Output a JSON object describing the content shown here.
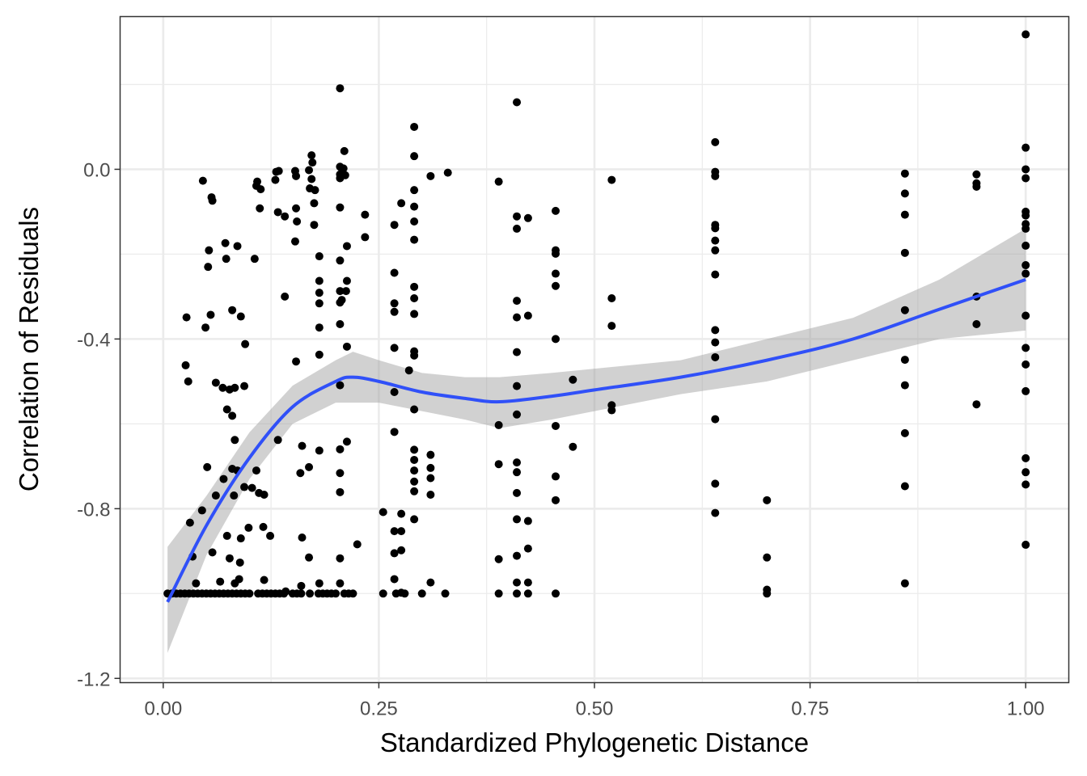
{
  "chart_data": {
    "type": "scatter",
    "title": "",
    "xlabel": "Standardized Phylogenetic Distance",
    "ylabel": "Correlation of Residuals",
    "xlim": [
      -0.05,
      1.05
    ],
    "ylim": [
      -1.21,
      0.36
    ],
    "x_ticks": [
      0,
      0.25,
      0.5,
      0.75,
      1.0
    ],
    "x_tick_labels": [
      "0.00",
      "0.25",
      "0.50",
      "0.75",
      "1.00"
    ],
    "y_ticks": [
      0.0,
      -0.4,
      -0.8,
      -1.2
    ],
    "y_tick_labels": [
      "0.0",
      "-0.4",
      "-0.8",
      "-1.2"
    ],
    "grid": true,
    "colors": {
      "points": "#000000",
      "smooth": "#3050f8",
      "ribbon": "#999999",
      "grid": "#ebebeb",
      "border": "#333333"
    },
    "smooth": {
      "name": "loess fit",
      "x": [
        0.005,
        0.05,
        0.1,
        0.15,
        0.2,
        0.22,
        0.25,
        0.3,
        0.35,
        0.39,
        0.45,
        0.5,
        0.6,
        0.7,
        0.8,
        0.9,
        1.0
      ],
      "y": [
        -1.02,
        -0.84,
        -0.68,
        -0.56,
        -0.5,
        -0.49,
        -0.5,
        -0.525,
        -0.54,
        -0.548,
        -0.535,
        -0.52,
        -0.49,
        -0.45,
        -0.4,
        -0.33,
        -0.26
      ],
      "lower": [
        -1.14,
        -0.91,
        -0.73,
        -0.6,
        -0.55,
        -0.55,
        -0.55,
        -0.57,
        -0.59,
        -0.61,
        -0.59,
        -0.57,
        -0.53,
        -0.5,
        -0.45,
        -0.4,
        -0.38
      ],
      "upper": [
        -0.89,
        -0.77,
        -0.62,
        -0.51,
        -0.45,
        -0.43,
        -0.45,
        -0.48,
        -0.49,
        -0.49,
        -0.48,
        -0.47,
        -0.45,
        -0.4,
        -0.35,
        -0.26,
        -0.14
      ]
    },
    "points": [
      [
        0.046,
        -0.027
      ],
      [
        0.056,
        -0.066
      ],
      [
        0.057,
        -0.074
      ],
      [
        0.053,
        -0.191
      ],
      [
        0.052,
        -0.23
      ],
      [
        0.072,
        -0.174
      ],
      [
        0.073,
        -0.211
      ],
      [
        0.086,
        -0.181
      ],
      [
        0.106,
        -0.211
      ],
      [
        0.027,
        -0.349
      ],
      [
        0.049,
        -0.373
      ],
      [
        0.055,
        -0.343
      ],
      [
        0.08,
        -0.332
      ],
      [
        0.09,
        -0.347
      ],
      [
        0.095,
        -0.412
      ],
      [
        0.026,
        -0.462
      ],
      [
        0.029,
        -0.5
      ],
      [
        0.061,
        -0.503
      ],
      [
        0.069,
        -0.515
      ],
      [
        0.077,
        -0.519
      ],
      [
        0.083,
        -0.515
      ],
      [
        0.094,
        -0.511
      ],
      [
        0.074,
        -0.566
      ],
      [
        0.08,
        -0.581
      ],
      [
        0.083,
        -0.638
      ],
      [
        0.031,
        -0.833
      ],
      [
        0.045,
        -0.804
      ],
      [
        0.051,
        -0.702
      ],
      [
        0.061,
        -0.769
      ],
      [
        0.07,
        -0.73
      ],
      [
        0.08,
        -0.706
      ],
      [
        0.086,
        -0.71
      ],
      [
        0.082,
        -0.769
      ],
      [
        0.094,
        -0.749
      ],
      [
        0.103,
        -0.751
      ],
      [
        0.108,
        -0.71
      ],
      [
        0.111,
        -0.763
      ],
      [
        0.117,
        -0.767
      ],
      [
        0.034,
        -0.913
      ],
      [
        0.057,
        -0.903
      ],
      [
        0.074,
        -0.864
      ],
      [
        0.077,
        -0.917
      ],
      [
        0.09,
        -0.87
      ],
      [
        0.099,
        -0.845
      ],
      [
        0.116,
        -0.843
      ],
      [
        0.089,
        -0.927
      ],
      [
        0.088,
        -0.966
      ],
      [
        0.038,
        -0.976
      ],
      [
        0.066,
        -0.972
      ],
      [
        0.083,
        -0.976
      ],
      [
        0.117,
        -0.968
      ],
      [
        0.005,
        -1
      ],
      [
        0.01,
        -1
      ],
      [
        0.015,
        -1
      ],
      [
        0.02,
        -1
      ],
      [
        0.025,
        -1
      ],
      [
        0.03,
        -1
      ],
      [
        0.035,
        -1
      ],
      [
        0.04,
        -1
      ],
      [
        0.045,
        -1
      ],
      [
        0.05,
        -1
      ],
      [
        0.055,
        -1
      ],
      [
        0.06,
        -1
      ],
      [
        0.065,
        -1
      ],
      [
        0.07,
        -1
      ],
      [
        0.075,
        -1
      ],
      [
        0.08,
        -1
      ],
      [
        0.085,
        -1
      ],
      [
        0.09,
        -1
      ],
      [
        0.095,
        -1
      ],
      [
        0.1,
        -1
      ],
      [
        0.11,
        -1
      ],
      [
        0.115,
        -1
      ],
      [
        0.12,
        -1
      ],
      [
        0.125,
        -1
      ],
      [
        0.13,
        -1
      ],
      [
        0.135,
        -1
      ],
      [
        0.14,
        -1
      ],
      [
        0.15,
        -1
      ],
      [
        0.155,
        -1
      ],
      [
        0.16,
        -1
      ],
      [
        0.17,
        -1
      ],
      [
        0.18,
        -1
      ],
      [
        0.185,
        -1
      ],
      [
        0.19,
        -1
      ],
      [
        0.195,
        -1
      ],
      [
        0.2,
        -1
      ],
      [
        0.21,
        -1
      ],
      [
        0.215,
        -1
      ],
      [
        0.22,
        -1
      ],
      [
        0.255,
        -1
      ],
      [
        0.27,
        -1
      ],
      [
        0.28,
        -1
      ],
      [
        0.3,
        -1
      ],
      [
        0.327,
        -1
      ],
      [
        0.389,
        -1
      ],
      [
        0.41,
        -1
      ],
      [
        0.423,
        -1
      ],
      [
        0.455,
        -1
      ],
      [
        0.109,
        -0.029
      ],
      [
        0.108,
        -0.039
      ],
      [
        0.113,
        -0.047
      ],
      [
        0.131,
        -0.006
      ],
      [
        0.134,
        -0.004
      ],
      [
        0.13,
        -0.025
      ],
      [
        0.153,
        -0.004
      ],
      [
        0.154,
        -0.016
      ],
      [
        0.172,
        0.033
      ],
      [
        0.173,
        0.016
      ],
      [
        0.169,
        -0.002
      ],
      [
        0.172,
        -0.023
      ],
      [
        0.176,
        -0.049
      ],
      [
        0.17,
        -0.045
      ],
      [
        0.154,
        -0.092
      ],
      [
        0.141,
        -0.111
      ],
      [
        0.112,
        -0.092
      ],
      [
        0.133,
        -0.101
      ],
      [
        0.155,
        -0.123
      ],
      [
        0.175,
        -0.08
      ],
      [
        0.175,
        -0.131
      ],
      [
        0.153,
        -0.17
      ],
      [
        0.141,
        -0.3
      ],
      [
        0.181,
        -0.205
      ],
      [
        0.181,
        -0.263
      ],
      [
        0.181,
        -0.291
      ],
      [
        0.181,
        -0.316
      ],
      [
        0.181,
        -0.373
      ],
      [
        0.181,
        -0.437
      ],
      [
        0.154,
        -0.453
      ],
      [
        0.161,
        -0.652
      ],
      [
        0.159,
        -0.716
      ],
      [
        0.169,
        -0.702
      ],
      [
        0.181,
        -0.663
      ],
      [
        0.133,
        -0.638
      ],
      [
        0.124,
        -0.864
      ],
      [
        0.161,
        -0.868
      ],
      [
        0.169,
        -0.915
      ],
      [
        0.142,
        -0.995
      ],
      [
        0.16,
        -0.982
      ],
      [
        0.181,
        -0.976
      ],
      [
        0.21,
        0.043
      ],
      [
        0.209,
        0.002
      ],
      [
        0.211,
        -0.014
      ],
      [
        0.213,
        -0.181
      ],
      [
        0.213,
        -0.263
      ],
      [
        0.212,
        -0.287
      ],
      [
        0.207,
        -0.308
      ],
      [
        0.213,
        -0.418
      ],
      [
        0.213,
        -0.642
      ],
      [
        0.225,
        -0.884
      ],
      [
        0.234,
        -0.107
      ],
      [
        0.234,
        -0.16
      ],
      [
        0.205,
        0.191
      ],
      [
        0.205,
        0.006
      ],
      [
        0.205,
        -0.012
      ],
      [
        0.205,
        -0.021
      ],
      [
        0.205,
        -0.09
      ],
      [
        0.205,
        -0.215
      ],
      [
        0.205,
        -0.287
      ],
      [
        0.205,
        -0.314
      ],
      [
        0.205,
        -0.365
      ],
      [
        0.205,
        -0.509
      ],
      [
        0.205,
        -0.66
      ],
      [
        0.205,
        -0.716
      ],
      [
        0.205,
        -0.761
      ],
      [
        0.205,
        -0.917
      ],
      [
        0.205,
        -0.976
      ],
      [
        0.268,
        -0.131
      ],
      [
        0.268,
        -0.244
      ],
      [
        0.268,
        -0.316
      ],
      [
        0.268,
        -0.336
      ],
      [
        0.268,
        -0.421
      ],
      [
        0.268,
        -0.525
      ],
      [
        0.268,
        -0.619
      ],
      [
        0.268,
        -0.853
      ],
      [
        0.268,
        -0.905
      ],
      [
        0.268,
        -0.966
      ],
      [
        0.276,
        -0.08
      ],
      [
        0.276,
        -0.812
      ],
      [
        0.276,
        -0.853
      ],
      [
        0.276,
        -0.898
      ],
      [
        0.276,
        -0.998
      ],
      [
        0.255,
        -0.808
      ],
      [
        0.285,
        -0.474
      ],
      [
        0.291,
        0.1
      ],
      [
        0.291,
        0.031
      ],
      [
        0.291,
        -0.049
      ],
      [
        0.291,
        -0.088
      ],
      [
        0.291,
        -0.123
      ],
      [
        0.291,
        -0.166
      ],
      [
        0.291,
        -0.277
      ],
      [
        0.291,
        -0.304
      ],
      [
        0.291,
        -0.341
      ],
      [
        0.291,
        -0.429
      ],
      [
        0.291,
        -0.439
      ],
      [
        0.291,
        -0.566
      ],
      [
        0.291,
        -0.661
      ],
      [
        0.291,
        -0.685
      ],
      [
        0.291,
        -0.71
      ],
      [
        0.291,
        -0.736
      ],
      [
        0.291,
        -0.759
      ],
      [
        0.291,
        -0.825
      ],
      [
        0.31,
        -0.016
      ],
      [
        0.33,
        -0.008
      ],
      [
        0.31,
        -0.673
      ],
      [
        0.31,
        -0.704
      ],
      [
        0.31,
        -0.728
      ],
      [
        0.31,
        -0.767
      ],
      [
        0.31,
        -0.974
      ],
      [
        0.41,
        0.158
      ],
      [
        0.41,
        -0.111
      ],
      [
        0.41,
        -0.14
      ],
      [
        0.41,
        -0.31
      ],
      [
        0.41,
        -0.349
      ],
      [
        0.41,
        -0.431
      ],
      [
        0.41,
        -0.511
      ],
      [
        0.41,
        -0.578
      ],
      [
        0.41,
        -0.691
      ],
      [
        0.41,
        -0.714
      ],
      [
        0.41,
        -0.763
      ],
      [
        0.41,
        -0.825
      ],
      [
        0.41,
        -0.911
      ],
      [
        0.41,
        -0.974
      ],
      [
        0.389,
        -0.029
      ],
      [
        0.389,
        -0.603
      ],
      [
        0.389,
        -0.695
      ],
      [
        0.389,
        -0.919
      ],
      [
        0.423,
        -0.115
      ],
      [
        0.423,
        -0.345
      ],
      [
        0.423,
        -0.829
      ],
      [
        0.423,
        -0.894
      ],
      [
        0.423,
        -0.974
      ],
      [
        0.455,
        -0.098
      ],
      [
        0.455,
        -0.191
      ],
      [
        0.455,
        -0.199
      ],
      [
        0.455,
        -0.246
      ],
      [
        0.455,
        -0.275
      ],
      [
        0.455,
        -0.4
      ],
      [
        0.455,
        -0.605
      ],
      [
        0.455,
        -0.724
      ],
      [
        0.455,
        -0.78
      ],
      [
        0.475,
        -0.496
      ],
      [
        0.475,
        -0.654
      ],
      [
        0.52,
        -0.025
      ],
      [
        0.52,
        -0.304
      ],
      [
        0.52,
        -0.369
      ],
      [
        0.52,
        -0.556
      ],
      [
        0.52,
        -0.568
      ],
      [
        0.64,
        0.064
      ],
      [
        0.64,
        -0.006
      ],
      [
        0.64,
        -0.016
      ],
      [
        0.64,
        -0.131
      ],
      [
        0.64,
        -0.139
      ],
      [
        0.64,
        -0.168
      ],
      [
        0.64,
        -0.191
      ],
      [
        0.64,
        -0.248
      ],
      [
        0.64,
        -0.379
      ],
      [
        0.64,
        -0.408
      ],
      [
        0.64,
        -0.443
      ],
      [
        0.64,
        -0.589
      ],
      [
        0.64,
        -0.741
      ],
      [
        0.64,
        -0.81
      ],
      [
        0.7,
        -0.78
      ],
      [
        0.7,
        -0.915
      ],
      [
        0.7,
        -0.991
      ],
      [
        0.7,
        -1
      ],
      [
        0.86,
        -0.01
      ],
      [
        0.86,
        -0.057
      ],
      [
        0.86,
        -0.107
      ],
      [
        0.86,
        -0.197
      ],
      [
        0.86,
        -0.332
      ],
      [
        0.86,
        -0.449
      ],
      [
        0.86,
        -0.509
      ],
      [
        0.86,
        -0.622
      ],
      [
        0.86,
        -0.747
      ],
      [
        0.86,
        -0.976
      ],
      [
        0.943,
        -0.012
      ],
      [
        0.943,
        -0.033
      ],
      [
        0.943,
        -0.041
      ],
      [
        0.943,
        -0.3
      ],
      [
        0.943,
        -0.365
      ],
      [
        0.943,
        -0.554
      ],
      [
        1,
        0.318
      ],
      [
        1,
        0.051
      ],
      [
        1,
        0
      ],
      [
        1,
        -0.021
      ],
      [
        1,
        -0.1
      ],
      [
        1,
        -0.109
      ],
      [
        1,
        -0.129
      ],
      [
        1,
        -0.14
      ],
      [
        1,
        -0.18
      ],
      [
        1,
        -0.226
      ],
      [
        1,
        -0.246
      ],
      [
        1,
        -0.345
      ],
      [
        1,
        -0.421
      ],
      [
        1,
        -0.46
      ],
      [
        1,
        -0.523
      ],
      [
        1,
        -0.681
      ],
      [
        1,
        -0.714
      ],
      [
        1,
        -0.743
      ],
      [
        1,
        -0.885
      ]
    ]
  }
}
